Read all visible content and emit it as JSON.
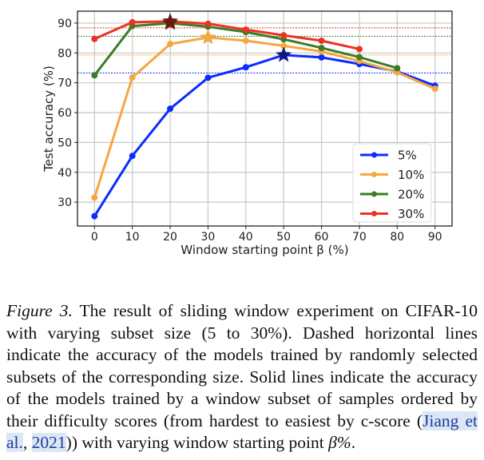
{
  "chart_data": {
    "type": "line",
    "title": "",
    "xlabel": "Window starting point β (%)",
    "ylabel": "Test accuracy (%)",
    "xlim": [
      -4.5,
      94.5
    ],
    "ylim": [
      22,
      94
    ],
    "xticks": [
      0,
      10,
      20,
      30,
      40,
      50,
      60,
      70,
      80,
      90
    ],
    "yticks": [
      30,
      40,
      50,
      60,
      70,
      80,
      90
    ],
    "grid": true,
    "legend_position": "lower-right",
    "series": [
      {
        "name": "5%",
        "color": "#0a2cff",
        "x": [
          0,
          10,
          20,
          30,
          40,
          50,
          60,
          70,
          80,
          90
        ],
        "y": [
          25.3,
          45.5,
          61.3,
          71.7,
          75.2,
          79.3,
          78.5,
          76.3,
          73.8,
          69.0
        ],
        "random_baseline": 73.3,
        "best": {
          "x": 50,
          "y": 79.3,
          "color": "#0d1a80"
        }
      },
      {
        "name": "10%",
        "color": "#f5a742",
        "x": [
          0,
          10,
          20,
          30,
          40,
          50,
          60,
          70,
          80,
          90
        ],
        "y": [
          31.5,
          71.8,
          83.0,
          85.2,
          84.1,
          82.4,
          80.5,
          77.3,
          73.5,
          68.0
        ],
        "random_baseline": 79.3,
        "best": {
          "x": 30,
          "y": 85.2,
          "color": "#f5a742"
        }
      },
      {
        "name": "20%",
        "color": "#3a7d24",
        "x": [
          0,
          10,
          20,
          30,
          40,
          50,
          60,
          70,
          80
        ],
        "y": [
          72.5,
          89.0,
          90.0,
          88.8,
          87.0,
          84.6,
          81.7,
          78.6,
          74.9
        ],
        "random_baseline": 85.6,
        "best": {
          "x": 20,
          "y": 90.0,
          "color": "#6b1a10"
        }
      },
      {
        "name": "30%",
        "color": "#ee3124",
        "x": [
          0,
          10,
          20,
          30,
          40,
          50,
          60,
          70
        ],
        "y": [
          84.7,
          90.3,
          90.6,
          89.8,
          87.8,
          85.9,
          84.1,
          81.3
        ],
        "random_baseline": 88.4,
        "best": {
          "x": 20,
          "y": 90.6,
          "color": "#6b1a10"
        }
      }
    ]
  },
  "caption": {
    "label": "Figure 3.",
    "text_1": " The result of sliding window experiment on CIFAR-10 with varying subset size (5 to 30%).  Dashed horizontal lines indicate the accuracy of the models trained by randomly selected subsets of the corresponding size. Solid lines indicate the accuracy of the models trained by a window subset of samples ordered by their difficulty scores (from hardest to easiest by c-score (",
    "cite_author": "Jiang et al.",
    "cite_sep": ", ",
    "cite_year": "2021",
    "text_2": ")) with varying window starting point ",
    "math": "β%",
    "text_3": "."
  }
}
